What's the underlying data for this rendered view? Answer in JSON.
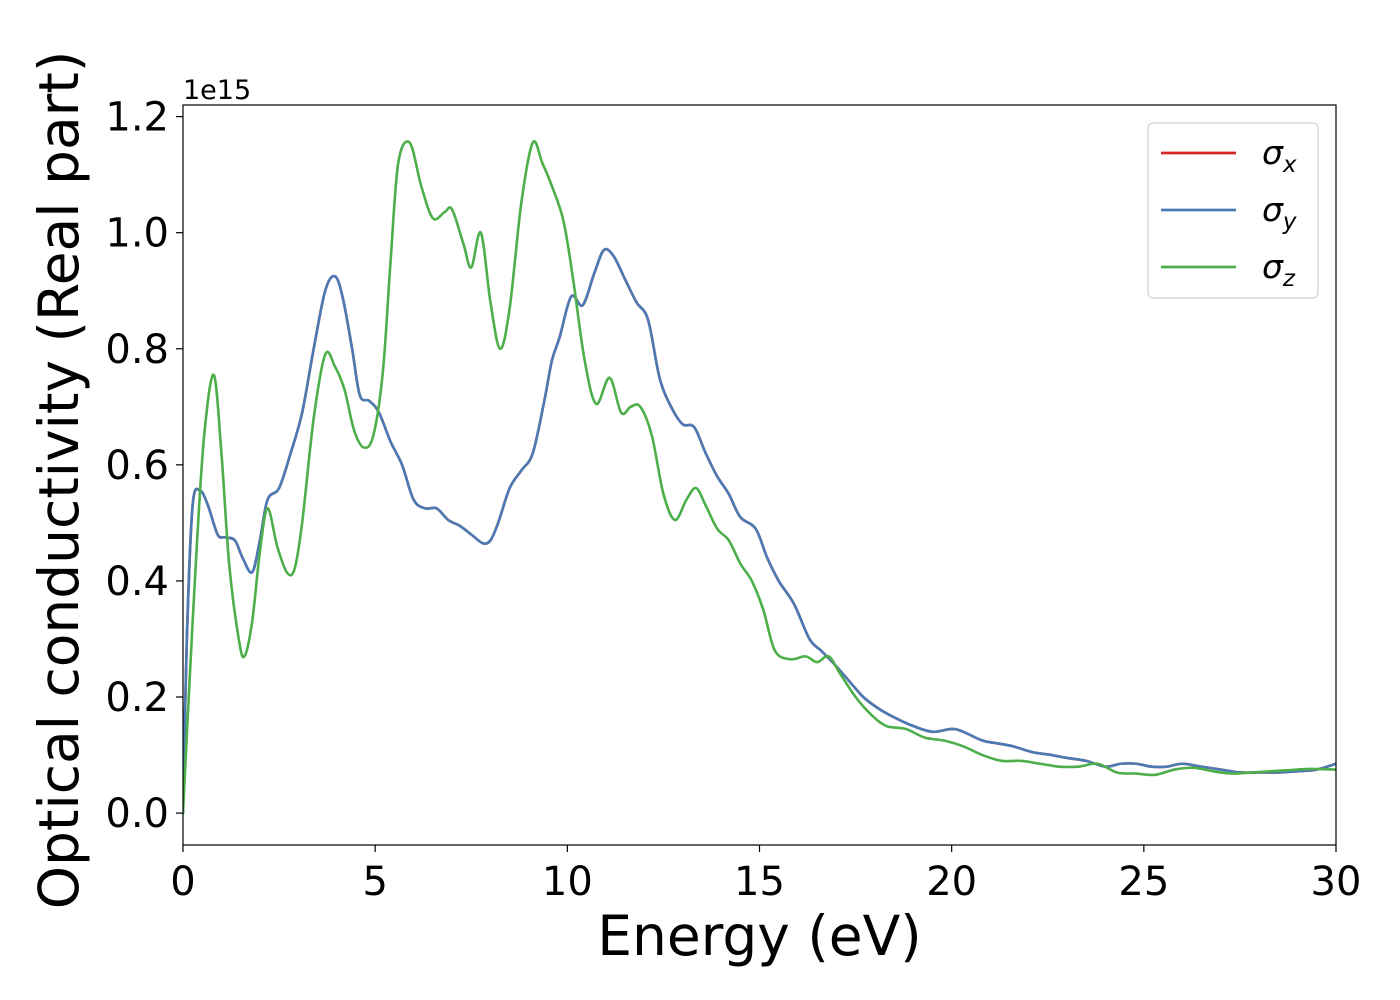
{
  "chart_data": {
    "type": "line",
    "title": "",
    "xlabel": "Energy (eV)",
    "ylabel": "Optical conductivity (Real part)",
    "y_offset_label": "1e15",
    "xlim": [
      0,
      30
    ],
    "ylim": [
      -0.055,
      1.22
    ],
    "xticks": [
      0,
      5,
      10,
      15,
      20,
      25,
      30
    ],
    "xtick_labels": [
      "0",
      "5",
      "10",
      "15",
      "20",
      "25",
      "30"
    ],
    "yticks": [
      0.0,
      0.2,
      0.4,
      0.6,
      0.8,
      1.0,
      1.2
    ],
    "ytick_labels": [
      "0.0",
      "0.2",
      "0.4",
      "0.6",
      "0.8",
      "1.0",
      "1.2"
    ],
    "grid": false,
    "legend_position": "top-right",
    "series": [
      {
        "name": "σ",
        "subscript": "x",
        "color": "#d62728",
        "x": [
          0,
          0.1,
          0.25,
          0.45,
          0.65,
          0.9,
          1.1,
          1.35,
          1.55,
          1.8,
          2.0,
          2.2,
          2.5,
          2.8,
          3.1,
          3.4,
          3.7,
          3.95,
          4.15,
          4.4,
          4.6,
          4.85,
          5.1,
          5.4,
          5.7,
          6.0,
          6.3,
          6.6,
          6.9,
          7.2,
          7.5,
          7.8,
          8.0,
          8.2,
          8.5,
          8.8,
          9.1,
          9.4,
          9.6,
          9.8,
          10.1,
          10.4,
          10.7,
          10.95,
          11.2,
          11.5,
          11.8,
          12.1,
          12.4,
          12.7,
          13.0,
          13.3,
          13.6,
          13.9,
          14.2,
          14.5,
          14.9,
          15.2,
          15.5,
          15.9,
          16.3,
          16.6,
          16.9,
          17.3,
          17.7,
          18.1,
          18.5,
          19.0,
          19.5,
          20.0,
          20.3,
          20.8,
          21.2,
          21.6,
          22.1,
          22.6,
          23.0,
          23.5,
          24.0,
          24.4,
          24.8,
          25.2,
          25.6,
          26.0,
          26.5,
          27.0,
          27.5,
          28.0,
          28.5,
          29.0,
          29.5,
          30.0
        ],
        "values": [
          0.0,
          0.3,
          0.53,
          0.555,
          0.53,
          0.48,
          0.475,
          0.47,
          0.44,
          0.415,
          0.47,
          0.54,
          0.56,
          0.62,
          0.69,
          0.8,
          0.9,
          0.925,
          0.89,
          0.8,
          0.72,
          0.71,
          0.69,
          0.64,
          0.6,
          0.54,
          0.525,
          0.525,
          0.505,
          0.495,
          0.48,
          0.465,
          0.47,
          0.5,
          0.56,
          0.59,
          0.62,
          0.71,
          0.78,
          0.82,
          0.89,
          0.875,
          0.93,
          0.97,
          0.96,
          0.92,
          0.88,
          0.85,
          0.75,
          0.7,
          0.67,
          0.665,
          0.62,
          0.58,
          0.55,
          0.51,
          0.49,
          0.44,
          0.4,
          0.36,
          0.3,
          0.28,
          0.26,
          0.23,
          0.2,
          0.18,
          0.165,
          0.15,
          0.14,
          0.145,
          0.14,
          0.125,
          0.12,
          0.115,
          0.105,
          0.1,
          0.095,
          0.09,
          0.08,
          0.085,
          0.085,
          0.08,
          0.08,
          0.085,
          0.08,
          0.075,
          0.07,
          0.07,
          0.07,
          0.072,
          0.075,
          0.085
        ]
      },
      {
        "name": "σ",
        "subscript": "y",
        "color": "#4a7bb5",
        "x": [
          0,
          0.1,
          0.25,
          0.45,
          0.65,
          0.9,
          1.1,
          1.35,
          1.55,
          1.8,
          2.0,
          2.2,
          2.5,
          2.8,
          3.1,
          3.4,
          3.7,
          3.95,
          4.15,
          4.4,
          4.6,
          4.85,
          5.1,
          5.4,
          5.7,
          6.0,
          6.3,
          6.6,
          6.9,
          7.2,
          7.5,
          7.8,
          8.0,
          8.2,
          8.5,
          8.8,
          9.1,
          9.4,
          9.6,
          9.8,
          10.1,
          10.4,
          10.7,
          10.95,
          11.2,
          11.5,
          11.8,
          12.1,
          12.4,
          12.7,
          13.0,
          13.3,
          13.6,
          13.9,
          14.2,
          14.5,
          14.9,
          15.2,
          15.5,
          15.9,
          16.3,
          16.6,
          16.9,
          17.3,
          17.7,
          18.1,
          18.5,
          19.0,
          19.5,
          20.0,
          20.3,
          20.8,
          21.2,
          21.6,
          22.1,
          22.6,
          23.0,
          23.5,
          24.0,
          24.4,
          24.8,
          25.2,
          25.6,
          26.0,
          26.5,
          27.0,
          27.5,
          28.0,
          28.5,
          29.0,
          29.5,
          30.0
        ],
        "values": [
          0.0,
          0.3,
          0.53,
          0.555,
          0.53,
          0.48,
          0.475,
          0.47,
          0.44,
          0.415,
          0.47,
          0.54,
          0.56,
          0.62,
          0.69,
          0.8,
          0.9,
          0.925,
          0.89,
          0.8,
          0.72,
          0.71,
          0.69,
          0.64,
          0.6,
          0.54,
          0.525,
          0.525,
          0.505,
          0.495,
          0.48,
          0.465,
          0.47,
          0.5,
          0.56,
          0.59,
          0.62,
          0.71,
          0.78,
          0.82,
          0.89,
          0.875,
          0.93,
          0.97,
          0.96,
          0.92,
          0.88,
          0.85,
          0.75,
          0.7,
          0.67,
          0.665,
          0.62,
          0.58,
          0.55,
          0.51,
          0.49,
          0.44,
          0.4,
          0.36,
          0.3,
          0.28,
          0.26,
          0.23,
          0.2,
          0.18,
          0.165,
          0.15,
          0.14,
          0.145,
          0.14,
          0.125,
          0.12,
          0.115,
          0.105,
          0.1,
          0.095,
          0.09,
          0.08,
          0.085,
          0.085,
          0.08,
          0.08,
          0.085,
          0.08,
          0.075,
          0.07,
          0.07,
          0.07,
          0.072,
          0.075,
          0.085
        ]
      },
      {
        "name": "σ",
        "subscript": "z",
        "color": "#4daf4a",
        "x": [
          0,
          0.15,
          0.35,
          0.55,
          0.8,
          1.0,
          1.2,
          1.45,
          1.6,
          1.8,
          2.0,
          2.2,
          2.45,
          2.7,
          2.9,
          3.1,
          3.4,
          3.7,
          3.95,
          4.2,
          4.45,
          4.7,
          4.95,
          5.2,
          5.4,
          5.6,
          5.9,
          6.2,
          6.5,
          6.8,
          7.0,
          7.3,
          7.5,
          7.75,
          8.0,
          8.25,
          8.5,
          8.8,
          9.1,
          9.35,
          9.6,
          9.9,
          10.15,
          10.45,
          10.75,
          11.1,
          11.4,
          11.65,
          11.9,
          12.2,
          12.5,
          12.8,
          13.1,
          13.35,
          13.6,
          13.9,
          14.2,
          14.5,
          14.8,
          15.1,
          15.4,
          15.8,
          16.2,
          16.5,
          16.8,
          17.1,
          17.5,
          17.9,
          18.3,
          18.8,
          19.3,
          19.8,
          20.3,
          20.8,
          21.3,
          21.8,
          22.3,
          22.8,
          23.3,
          23.8,
          24.3,
          24.8,
          25.3,
          25.8,
          26.3,
          26.8,
          27.3,
          27.8,
          28.3,
          28.8,
          29.3,
          30.0
        ],
        "values": [
          0.0,
          0.2,
          0.45,
          0.65,
          0.755,
          0.62,
          0.43,
          0.3,
          0.27,
          0.33,
          0.45,
          0.525,
          0.46,
          0.415,
          0.42,
          0.5,
          0.68,
          0.79,
          0.77,
          0.73,
          0.66,
          0.63,
          0.65,
          0.76,
          0.95,
          1.12,
          1.155,
          1.08,
          1.025,
          1.035,
          1.04,
          0.98,
          0.94,
          1.0,
          0.88,
          0.8,
          0.87,
          1.05,
          1.155,
          1.12,
          1.08,
          1.02,
          0.92,
          0.78,
          0.705,
          0.75,
          0.69,
          0.7,
          0.7,
          0.65,
          0.55,
          0.505,
          0.54,
          0.56,
          0.53,
          0.49,
          0.47,
          0.43,
          0.4,
          0.35,
          0.28,
          0.265,
          0.27,
          0.26,
          0.27,
          0.24,
          0.2,
          0.17,
          0.15,
          0.145,
          0.13,
          0.125,
          0.115,
          0.1,
          0.09,
          0.09,
          0.085,
          0.08,
          0.08,
          0.085,
          0.07,
          0.068,
          0.066,
          0.075,
          0.078,
          0.072,
          0.068,
          0.07,
          0.072,
          0.074,
          0.076,
          0.075
        ]
      }
    ]
  }
}
